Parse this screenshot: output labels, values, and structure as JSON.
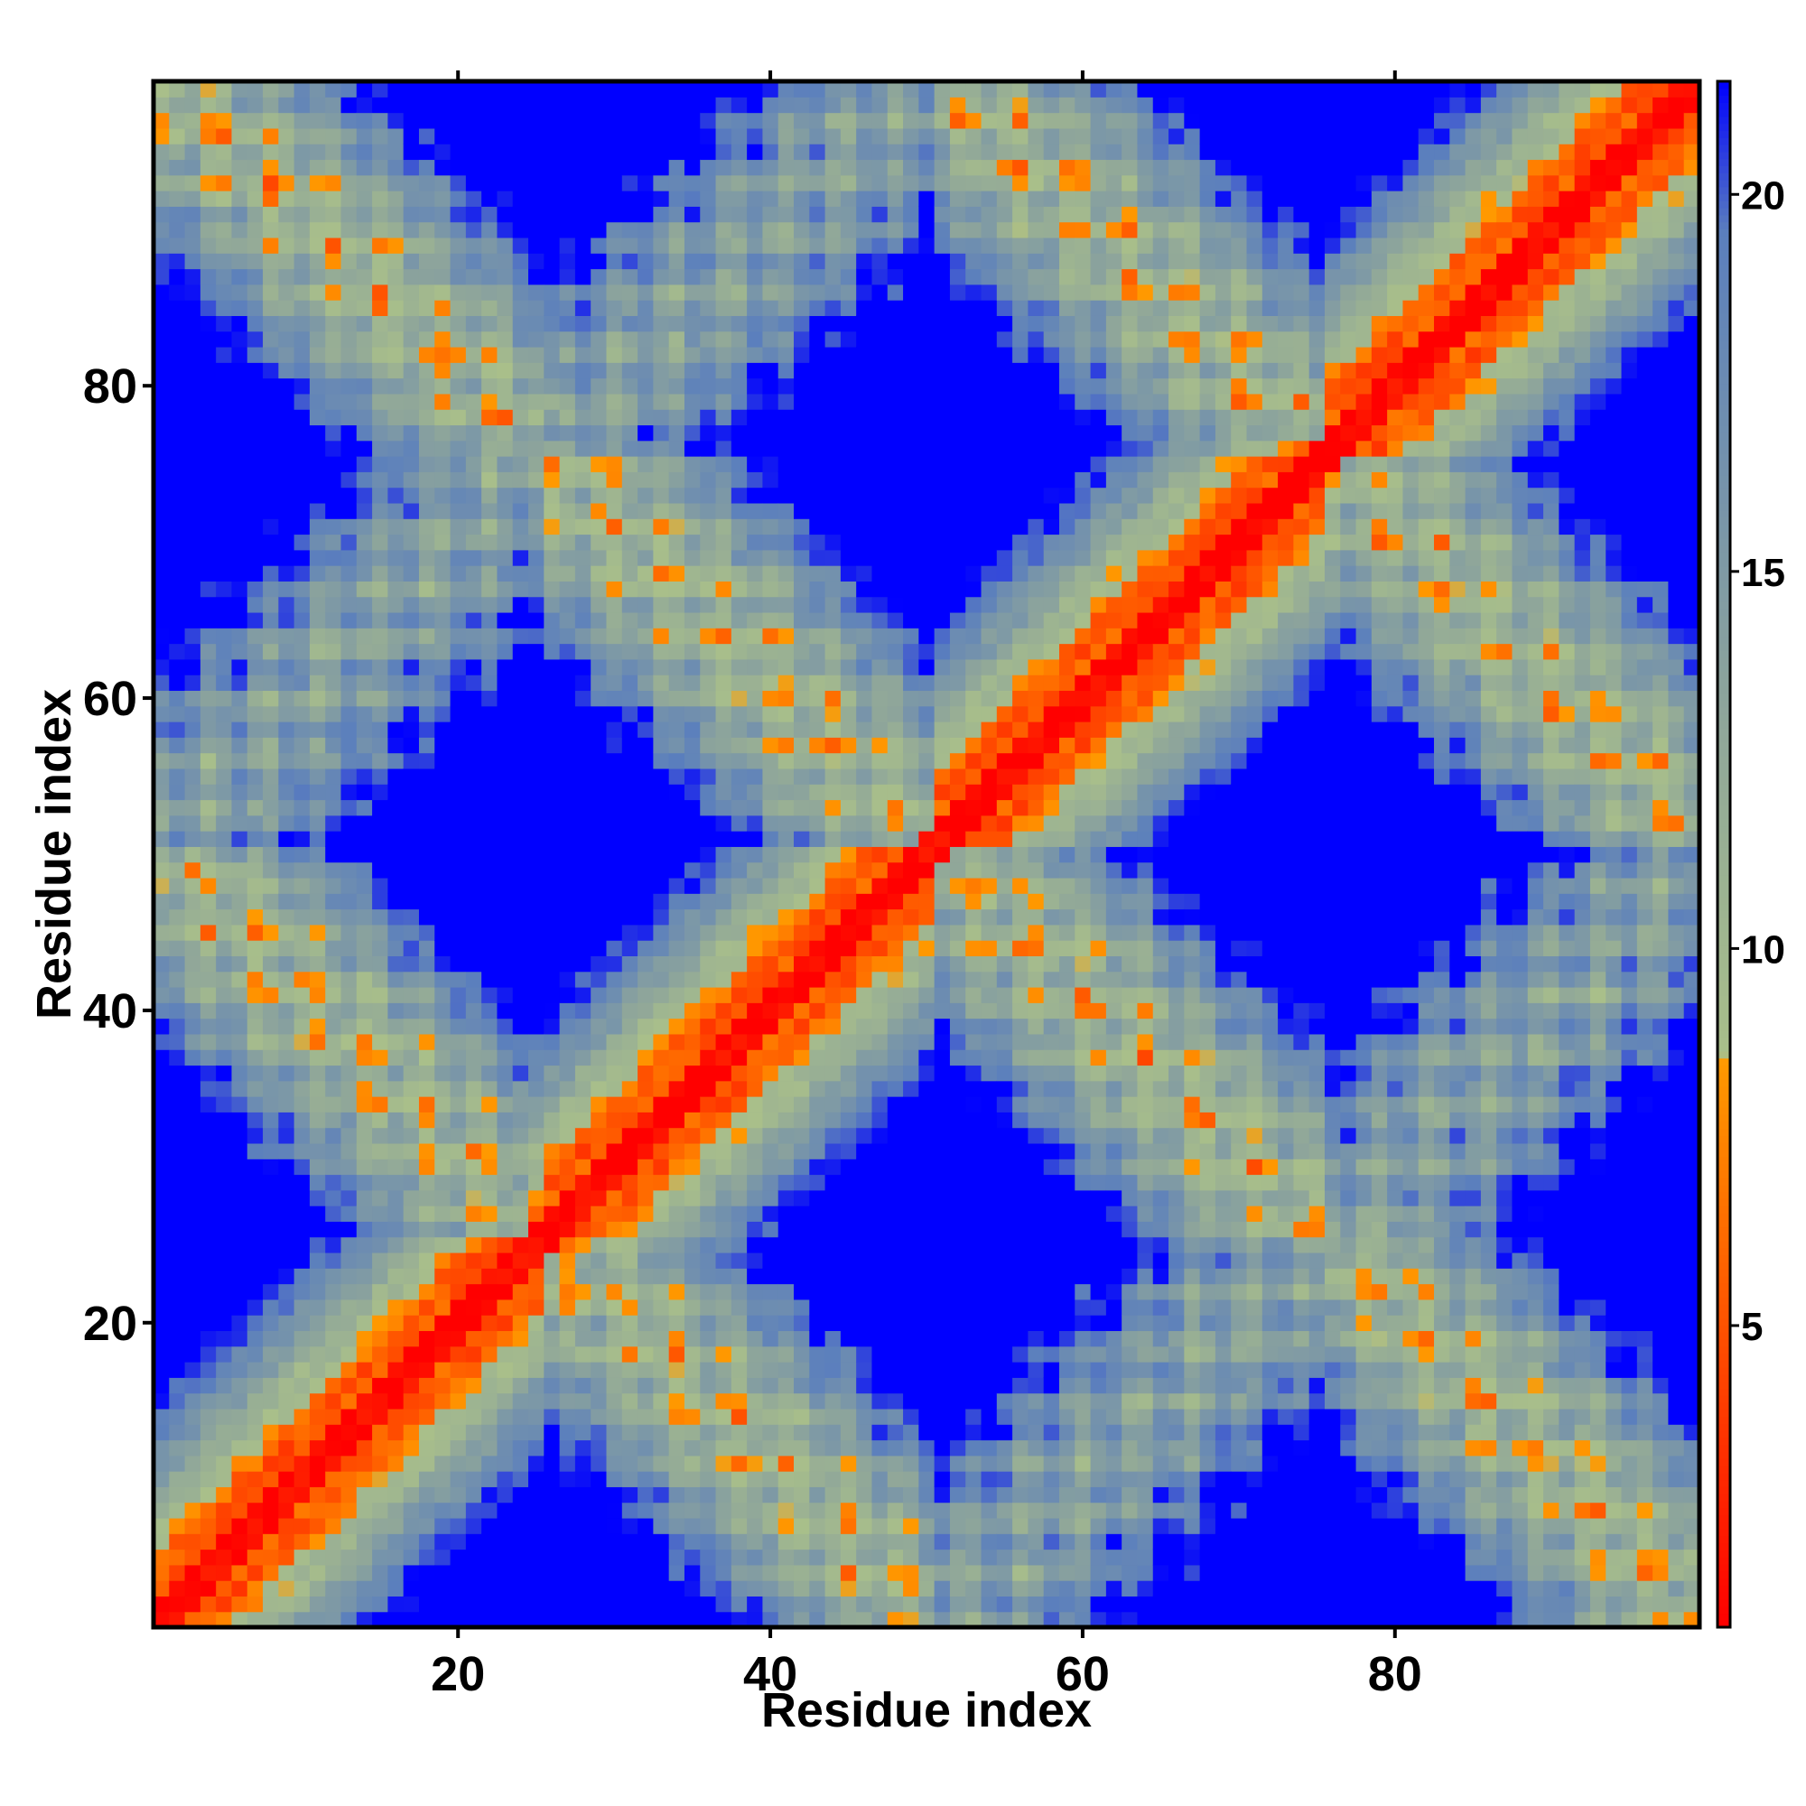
{
  "chart_data": {
    "type": "heatmap",
    "description_note": "",
    "x": {
      "min": 1,
      "max": 99
    },
    "y": {
      "min": 1,
      "max": 99
    },
    "xlabel": "Residue index",
    "ylabel": "Residue index",
    "xticks": [
      20,
      40,
      60,
      80
    ],
    "yticks": [
      20,
      40,
      60,
      80
    ],
    "colorbar": {
      "range": [
        1,
        21.5
      ],
      "ticks": [
        5,
        10,
        15,
        20
      ],
      "stops": [
        {
          "value": 1,
          "color": "#ff0000"
        },
        {
          "value": 8.5,
          "color": "#ff9900"
        },
        {
          "value": 8.6,
          "color": "#a9bf8a"
        },
        {
          "value": 13,
          "color": "#8fa69a"
        },
        {
          "value": 19.5,
          "color": "#5b7fbd"
        },
        {
          "value": 21.5,
          "color": "#0000ff"
        }
      ]
    },
    "cutoff": 21.5,
    "colors": {
      "high": "#0000ff",
      "mid": "#a6b98f",
      "low": "#ff0000",
      "close": "#ff9900"
    },
    "helix_period": 25,
    "bands": [
      {
        "kind": "main_diagonal",
        "value": 1
      },
      {
        "kind": "anti_diagonals",
        "passes": [
          [
            4,
            24
          ],
          [
            29,
            49
          ],
          [
            54,
            74
          ],
          [
            79,
            99
          ]
        ]
      }
    ]
  }
}
